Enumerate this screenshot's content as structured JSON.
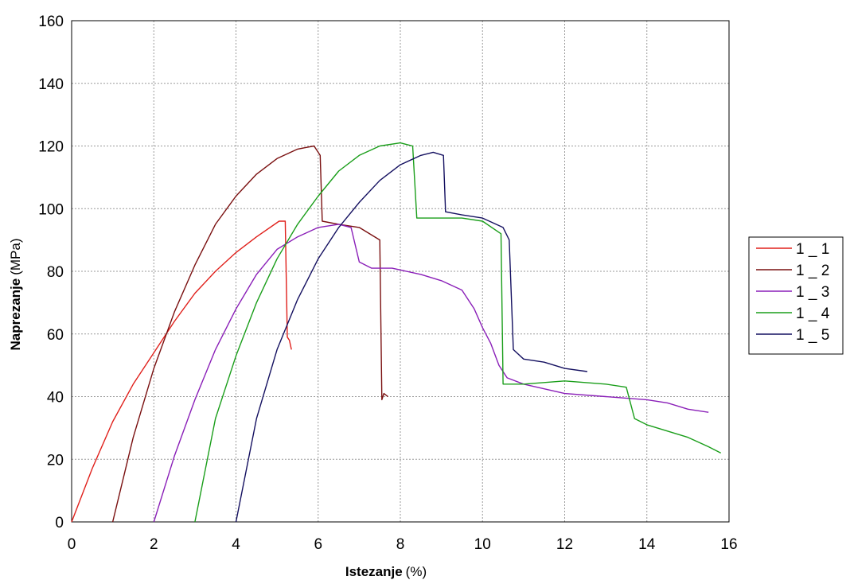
{
  "chart_data": {
    "type": "line",
    "xlabel": "Istezanje",
    "xlabel_unit": "(%)",
    "ylabel": "Naprezanje",
    "ylabel_unit": "(MPa)",
    "xlim": [
      0,
      16
    ],
    "ylim": [
      0,
      160
    ],
    "xticks": [
      "0",
      "2",
      "4",
      "6",
      "8",
      "10",
      "12",
      "14",
      "16"
    ],
    "yticks": [
      "0",
      "20",
      "40",
      "60",
      "80",
      "100",
      "120",
      "140",
      "160"
    ],
    "grid": true,
    "legend_position": "right",
    "series": [
      {
        "name": "1 _ 1",
        "color": "#e0201b",
        "points": [
          [
            0,
            0
          ],
          [
            0.5,
            17
          ],
          [
            1,
            32
          ],
          [
            1.5,
            44
          ],
          [
            2,
            54
          ],
          [
            2.5,
            64
          ],
          [
            3,
            73
          ],
          [
            3.5,
            80
          ],
          [
            4,
            86
          ],
          [
            4.5,
            91
          ],
          [
            5.05,
            96
          ],
          [
            5.2,
            96
          ],
          [
            5.25,
            59
          ],
          [
            5.3,
            58
          ],
          [
            5.35,
            55
          ]
        ]
      },
      {
        "name": "1 _ 2",
        "color": "#7a1010",
        "points": [
          [
            1,
            0
          ],
          [
            1.5,
            27
          ],
          [
            2,
            49
          ],
          [
            2.5,
            67
          ],
          [
            3,
            82
          ],
          [
            3.5,
            95
          ],
          [
            4,
            104
          ],
          [
            4.5,
            111
          ],
          [
            5,
            116
          ],
          [
            5.5,
            119
          ],
          [
            5.9,
            120
          ],
          [
            6.05,
            117
          ],
          [
            6.1,
            96
          ],
          [
            6.5,
            95
          ],
          [
            7,
            94
          ],
          [
            7.5,
            90
          ],
          [
            7.55,
            39
          ],
          [
            7.6,
            41
          ],
          [
            7.7,
            40
          ]
        ]
      },
      {
        "name": "1 _ 3",
        "color": "#8a1fb8",
        "points": [
          [
            2,
            0
          ],
          [
            2.5,
            21
          ],
          [
            3,
            39
          ],
          [
            3.5,
            55
          ],
          [
            4,
            68
          ],
          [
            4.5,
            79
          ],
          [
            5,
            87
          ],
          [
            5.5,
            91
          ],
          [
            6,
            94
          ],
          [
            6.5,
            95
          ],
          [
            6.8,
            94
          ],
          [
            7,
            83
          ],
          [
            7.3,
            81
          ],
          [
            7.8,
            81
          ],
          [
            8.5,
            79
          ],
          [
            9,
            77
          ],
          [
            9.5,
            74
          ],
          [
            9.8,
            68
          ],
          [
            10,
            62
          ],
          [
            10.2,
            57
          ],
          [
            10.4,
            50
          ],
          [
            10.6,
            46
          ],
          [
            11,
            44
          ],
          [
            12,
            41
          ],
          [
            13,
            40
          ],
          [
            14,
            39
          ],
          [
            14.5,
            38
          ],
          [
            15,
            36
          ],
          [
            15.5,
            35
          ]
        ]
      },
      {
        "name": "1 _ 4",
        "color": "#1a9e1a",
        "points": [
          [
            3,
            0
          ],
          [
            3.5,
            33
          ],
          [
            4,
            53
          ],
          [
            4.5,
            70
          ],
          [
            5,
            84
          ],
          [
            5.5,
            95
          ],
          [
            6,
            104
          ],
          [
            6.5,
            112
          ],
          [
            7,
            117
          ],
          [
            7.5,
            120
          ],
          [
            8,
            121
          ],
          [
            8.3,
            120
          ],
          [
            8.4,
            97
          ],
          [
            8.8,
            97
          ],
          [
            9.5,
            97
          ],
          [
            10,
            96
          ],
          [
            10.45,
            92
          ],
          [
            10.5,
            44
          ],
          [
            11,
            44
          ],
          [
            12,
            45
          ],
          [
            13,
            44
          ],
          [
            13.5,
            43
          ],
          [
            13.7,
            33
          ],
          [
            14,
            31
          ],
          [
            14.5,
            29
          ],
          [
            15,
            27
          ],
          [
            15.5,
            24
          ],
          [
            15.8,
            22
          ]
        ]
      },
      {
        "name": "1 _ 5",
        "color": "#141060",
        "points": [
          [
            4,
            0
          ],
          [
            4.5,
            33
          ],
          [
            5,
            55
          ],
          [
            5.5,
            71
          ],
          [
            6,
            84
          ],
          [
            6.5,
            94
          ],
          [
            7,
            102
          ],
          [
            7.5,
            109
          ],
          [
            8,
            114
          ],
          [
            8.5,
            117
          ],
          [
            8.8,
            118
          ],
          [
            9.05,
            117
          ],
          [
            9.1,
            99
          ],
          [
            9.5,
            98
          ],
          [
            10,
            97
          ],
          [
            10.5,
            94
          ],
          [
            10.65,
            90
          ],
          [
            10.75,
            55
          ],
          [
            11,
            52
          ],
          [
            11.5,
            51
          ],
          [
            12,
            49
          ],
          [
            12.55,
            48
          ]
        ]
      }
    ]
  }
}
